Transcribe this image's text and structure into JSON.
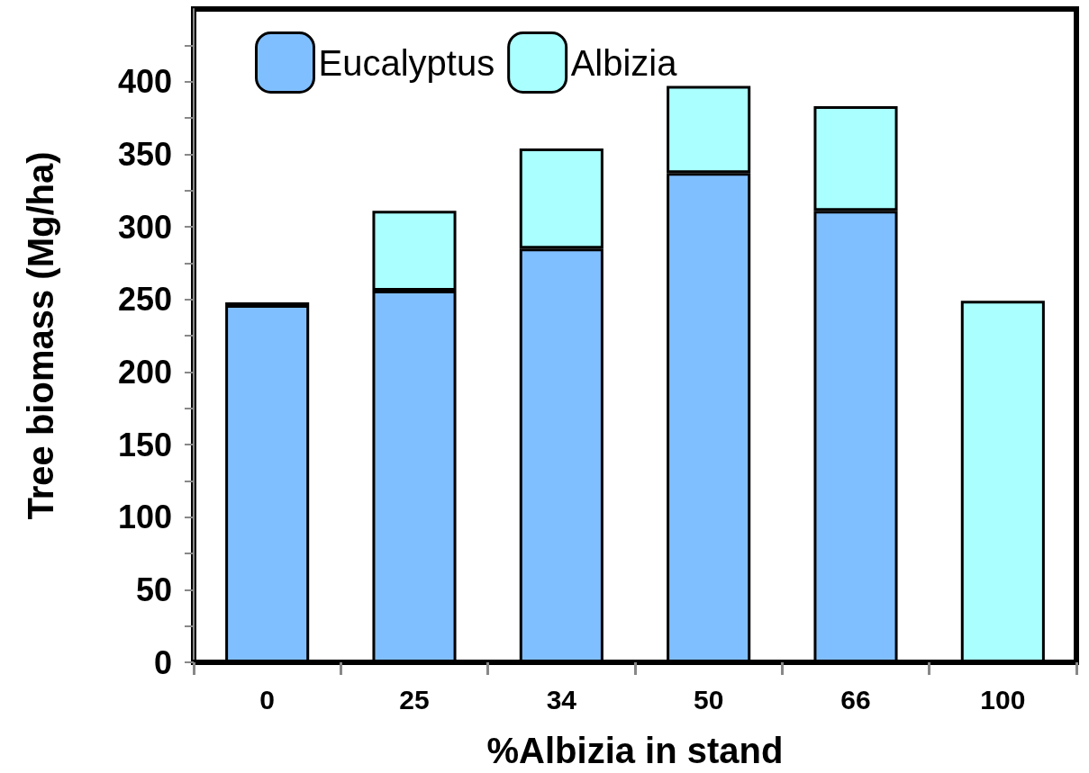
{
  "chart_data": {
    "type": "bar",
    "stacked": true,
    "xlabel": "%Albizia in stand",
    "ylabel": "Tree biomass (Mg/ha)",
    "categories": [
      "0",
      "25",
      "34",
      "50",
      "66",
      "100"
    ],
    "series": [
      {
        "name": "Eucalyptus",
        "color": "#80bfff",
        "values": [
          246,
          256,
          285,
          337,
          311,
          null
        ]
      },
      {
        "name": "Albizia",
        "color": "#aaffff",
        "values": [
          2,
          55,
          69,
          60,
          72,
          249
        ]
      }
    ],
    "ylim": [
      0,
      450
    ],
    "yticks": [
      0,
      {
        "value": 25,
        "label": null
      },
      50,
      {
        "value": 75,
        "label": null
      },
      100,
      {
        "value": 125,
        "label": null
      },
      150,
      {
        "value": 175,
        "label": null
      },
      200,
      {
        "value": 225,
        "label": null
      },
      250,
      {
        "value": 275,
        "label": null
      },
      300,
      {
        "value": 325,
        "label": null
      },
      350,
      {
        "value": 375,
        "label": null
      },
      400,
      {
        "value": 425,
        "label": null
      }
    ],
    "grid": false,
    "legend": "top left"
  }
}
